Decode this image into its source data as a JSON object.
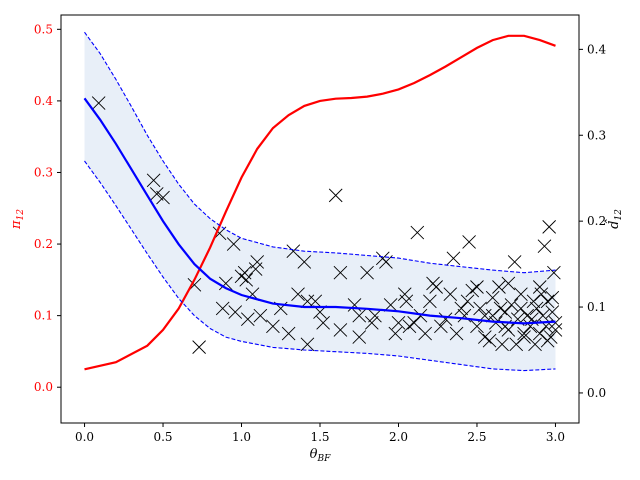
{
  "chart_data": {
    "type": "scatter",
    "xlabel": "θ",
    "xlabel_sub": "BF",
    "ylabel_left": "π",
    "ylabel_left_sub": "12",
    "ylabel_right": "d̂",
    "ylabel_right_sub": "12",
    "xlim": [
      -0.15,
      3.15
    ],
    "ylim_left": [
      -0.05,
      0.52
    ],
    "ylim_right": [
      -0.035,
      0.44
    ],
    "xticks": [
      0.0,
      0.5,
      1.0,
      1.5,
      2.0,
      2.5,
      3.0
    ],
    "xtick_labels": [
      "0.0",
      "0.5",
      "1.0",
      "1.5",
      "2.0",
      "2.5",
      "3.0"
    ],
    "yticks_left": [
      0.0,
      0.1,
      0.2,
      0.3,
      0.4,
      0.5
    ],
    "ytick_labels_left": [
      "0.0",
      "0.1",
      "0.2",
      "0.3",
      "0.4",
      "0.5"
    ],
    "yticks_right": [
      0.0,
      0.1,
      0.2,
      0.3,
      0.4
    ],
    "ytick_labels_right": [
      "0.0",
      "0.1",
      "0.2",
      "0.3",
      "0.4"
    ],
    "colors": {
      "pi_curve": "#ff0000",
      "fit": "#0000ff",
      "band": "#dbe7f5",
      "markers": "#000000",
      "left_axis_text": "#ff0000"
    },
    "series": [
      {
        "kind": "line",
        "axis": "left",
        "style": "solid",
        "x": [
          0.0,
          0.2,
          0.4,
          0.5,
          0.6,
          0.7,
          0.8,
          0.9,
          1.0,
          1.1,
          1.2,
          1.3,
          1.4,
          1.5,
          1.6,
          1.7,
          1.8,
          1.9,
          2.0,
          2.1,
          2.2,
          2.3,
          2.4,
          2.5,
          2.6,
          2.7,
          2.8,
          2.9,
          3.0
        ],
        "y": [
          0.025,
          0.035,
          0.058,
          0.08,
          0.11,
          0.15,
          0.195,
          0.245,
          0.293,
          0.333,
          0.362,
          0.38,
          0.393,
          0.4,
          0.403,
          0.404,
          0.406,
          0.41,
          0.416,
          0.425,
          0.436,
          0.448,
          0.461,
          0.474,
          0.485,
          0.491,
          0.491,
          0.485,
          0.477
        ]
      },
      {
        "kind": "line",
        "axis": "right",
        "style": "solid",
        "x": [
          0.0,
          0.1,
          0.2,
          0.3,
          0.4,
          0.5,
          0.6,
          0.7,
          0.8,
          0.9,
          1.0,
          1.2,
          1.4,
          1.6,
          1.8,
          2.0,
          2.2,
          2.4,
          2.6,
          2.8,
          3.0
        ],
        "y": [
          0.343,
          0.318,
          0.29,
          0.26,
          0.23,
          0.2,
          0.173,
          0.15,
          0.133,
          0.122,
          0.114,
          0.104,
          0.1,
          0.1,
          0.098,
          0.095,
          0.09,
          0.087,
          0.083,
          0.081,
          0.083
        ]
      },
      {
        "kind": "line",
        "axis": "right",
        "style": "dashed",
        "x": [
          0.0,
          0.1,
          0.2,
          0.3,
          0.4,
          0.5,
          0.6,
          0.7,
          0.8,
          0.9,
          1.0,
          1.2,
          1.4,
          1.6,
          1.8,
          2.0,
          2.2,
          2.4,
          2.6,
          2.8,
          3.0
        ],
        "y": [
          0.42,
          0.395,
          0.365,
          0.333,
          0.3,
          0.27,
          0.243,
          0.22,
          0.203,
          0.19,
          0.18,
          0.17,
          0.165,
          0.163,
          0.16,
          0.157,
          0.151,
          0.147,
          0.143,
          0.14,
          0.143
        ]
      },
      {
        "kind": "line",
        "axis": "right",
        "style": "dashed",
        "x": [
          0.0,
          0.1,
          0.2,
          0.3,
          0.4,
          0.5,
          0.6,
          0.7,
          0.8,
          0.9,
          1.0,
          1.2,
          1.4,
          1.6,
          1.8,
          2.0,
          2.2,
          2.4,
          2.6,
          2.8,
          3.0
        ],
        "y": [
          0.27,
          0.245,
          0.218,
          0.19,
          0.162,
          0.135,
          0.11,
          0.09,
          0.075,
          0.065,
          0.06,
          0.053,
          0.05,
          0.048,
          0.046,
          0.043,
          0.038,
          0.033,
          0.028,
          0.026,
          0.028
        ]
      },
      {
        "kind": "scatter",
        "axis": "left",
        "marker": "x",
        "points": [
          [
            0.09,
            0.397
          ],
          [
            0.44,
            0.289
          ],
          [
            0.46,
            0.27
          ],
          [
            0.5,
            0.265
          ],
          [
            0.7,
            0.143
          ],
          [
            0.73,
            0.056
          ],
          [
            0.86,
            0.215
          ],
          [
            0.9,
            0.145
          ],
          [
            0.88,
            0.11
          ],
          [
            0.95,
            0.2
          ],
          [
            0.96,
            0.105
          ],
          [
            1.0,
            0.155
          ],
          [
            1.02,
            0.16
          ],
          [
            1.03,
            0.15
          ],
          [
            1.07,
            0.13
          ],
          [
            1.09,
            0.165
          ],
          [
            1.1,
            0.175
          ],
          [
            1.04,
            0.095
          ],
          [
            1.12,
            0.1
          ],
          [
            1.2,
            0.085
          ],
          [
            1.25,
            0.11
          ],
          [
            1.3,
            0.075
          ],
          [
            1.33,
            0.19
          ],
          [
            1.36,
            0.13
          ],
          [
            1.4,
            0.175
          ],
          [
            1.42,
            0.06
          ],
          [
            1.42,
            0.12
          ],
          [
            1.47,
            0.12
          ],
          [
            1.5,
            0.105
          ],
          [
            1.52,
            0.09
          ],
          [
            1.6,
            0.268
          ],
          [
            1.63,
            0.16
          ],
          [
            1.63,
            0.08
          ],
          [
            1.72,
            0.115
          ],
          [
            1.75,
            0.07
          ],
          [
            1.75,
            0.1
          ],
          [
            1.8,
            0.16
          ],
          [
            1.83,
            0.09
          ],
          [
            1.85,
            0.1
          ],
          [
            1.9,
            0.18
          ],
          [
            1.92,
            0.175
          ],
          [
            1.95,
            0.115
          ],
          [
            1.98,
            0.075
          ],
          [
            2.0,
            0.09
          ],
          [
            2.04,
            0.13
          ],
          [
            2.05,
            0.12
          ],
          [
            2.07,
            0.085
          ],
          [
            2.1,
            0.09
          ],
          [
            2.12,
            0.216
          ],
          [
            2.14,
            0.1
          ],
          [
            2.17,
            0.075
          ],
          [
            2.2,
            0.12
          ],
          [
            2.22,
            0.145
          ],
          [
            2.24,
            0.14
          ],
          [
            2.27,
            0.085
          ],
          [
            2.3,
            0.095
          ],
          [
            2.33,
            0.13
          ],
          [
            2.35,
            0.18
          ],
          [
            2.37,
            0.075
          ],
          [
            2.4,
            0.11
          ],
          [
            2.42,
            0.1
          ],
          [
            2.44,
            0.12
          ],
          [
            2.45,
            0.203
          ],
          [
            2.47,
            0.135
          ],
          [
            2.5,
            0.085
          ],
          [
            2.52,
            0.11
          ],
          [
            2.55,
            0.1
          ],
          [
            2.58,
            0.065
          ],
          [
            2.6,
            0.125
          ],
          [
            2.62,
            0.09
          ],
          [
            2.64,
            0.14
          ],
          [
            2.66,
            0.06
          ],
          [
            2.68,
            0.105
          ],
          [
            2.7,
            0.08
          ],
          [
            2.72,
            0.115
          ],
          [
            2.74,
            0.175
          ],
          [
            2.76,
            0.095
          ],
          [
            2.78,
            0.13
          ],
          [
            2.8,
            0.07
          ],
          [
            2.82,
            0.1
          ],
          [
            2.84,
            0.085
          ],
          [
            2.86,
            0.12
          ],
          [
            2.87,
            0.06
          ],
          [
            2.88,
            0.11
          ],
          [
            2.9,
            0.075
          ],
          [
            2.91,
            0.13
          ],
          [
            2.92,
            0.1
          ],
          [
            2.93,
            0.197
          ],
          [
            2.94,
            0.085
          ],
          [
            2.95,
            0.12
          ],
          [
            2.96,
            0.224
          ],
          [
            2.97,
            0.07
          ],
          [
            2.98,
            0.105
          ],
          [
            2.99,
            0.16
          ],
          [
            3.0,
            0.09
          ],
          [
            3.0,
            0.08
          ],
          [
            2.6,
            0.1
          ],
          [
            2.7,
            0.145
          ],
          [
            2.8,
            0.075
          ],
          [
            2.5,
            0.14
          ],
          [
            2.55,
            0.07
          ],
          [
            2.65,
            0.11
          ],
          [
            2.75,
            0.06
          ],
          [
            2.85,
            0.095
          ],
          [
            2.9,
            0.14
          ],
          [
            2.95,
            0.065
          ],
          [
            2.98,
            0.125
          ],
          [
            2.68,
            0.085
          ],
          [
            2.78,
            0.11
          ]
        ]
      }
    ]
  }
}
